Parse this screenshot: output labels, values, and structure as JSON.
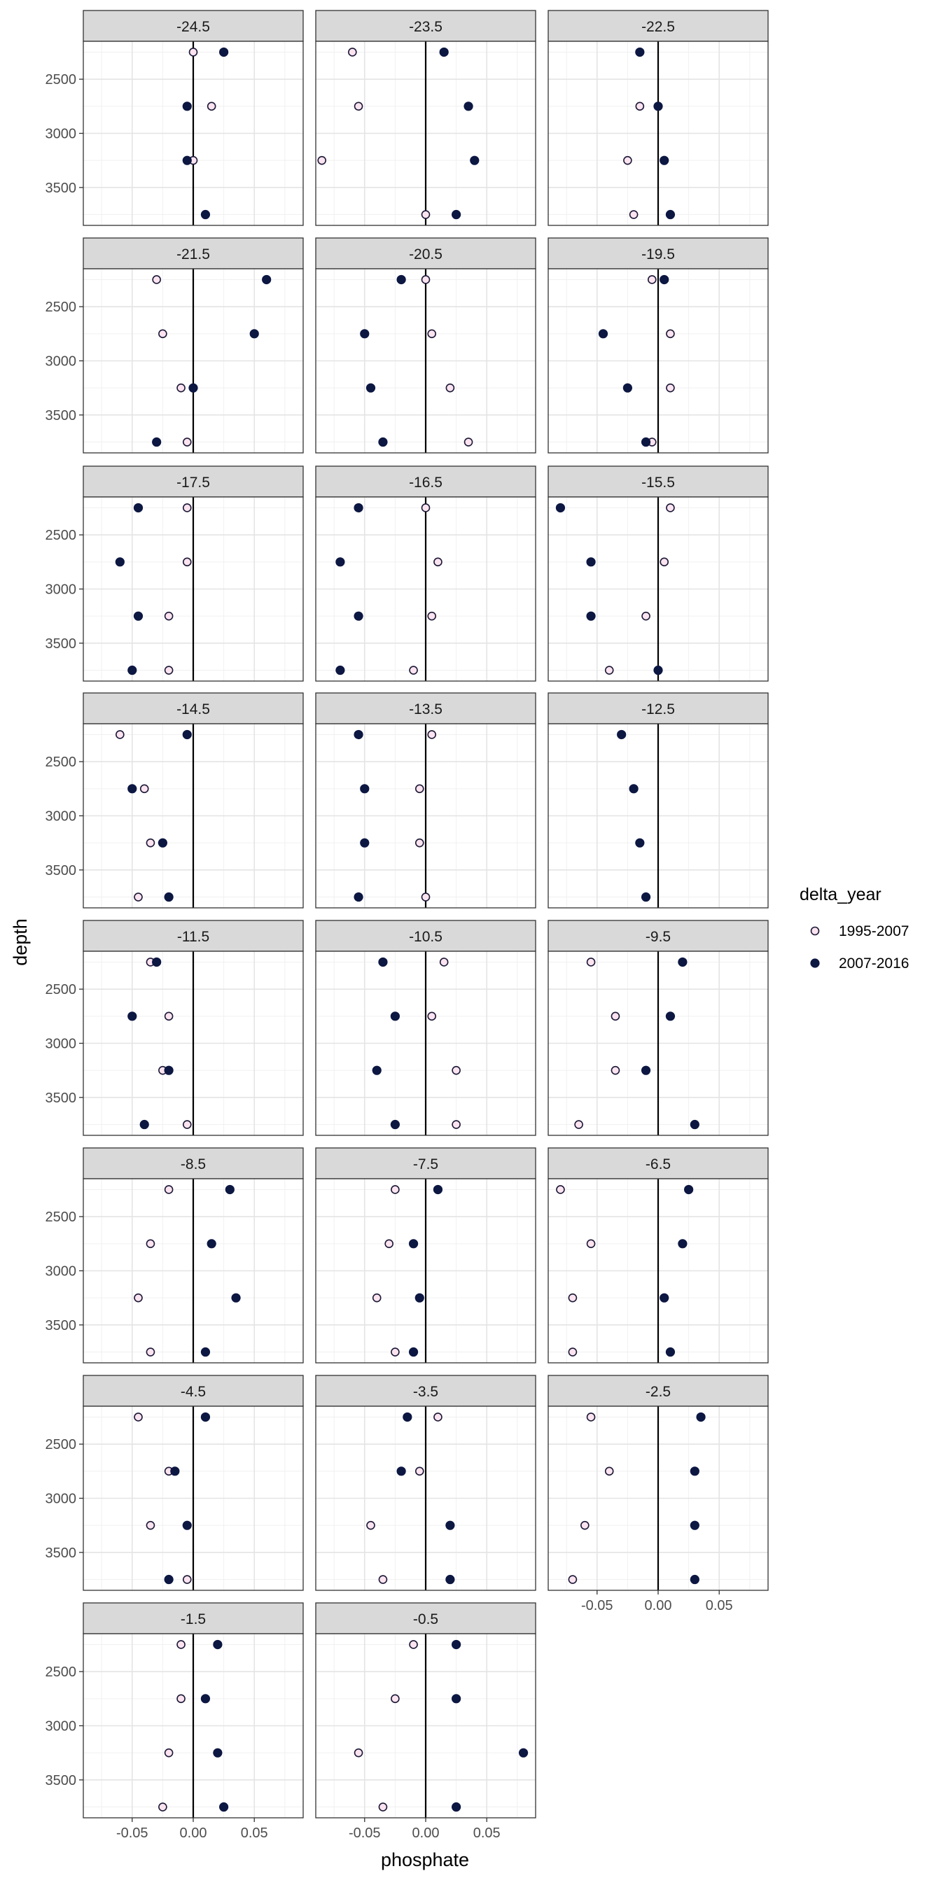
{
  "chart_data": {
    "type": "scatter",
    "xlabel": "phosphate",
    "ylabel": "depth",
    "xlim": [
      -0.09,
      0.09
    ],
    "ylim": [
      2150,
      3850
    ],
    "y_reversed": true,
    "x_ticks": [
      -0.05,
      0.0,
      0.05
    ],
    "x_tick_labels": [
      "-0.05",
      "0.00",
      "0.05"
    ],
    "y_ticks": [
      2500,
      3000,
      3500
    ],
    "y_tick_labels": [
      "2500",
      "3000",
      "3500"
    ],
    "reference_line_x": 0,
    "grid": true,
    "legend": {
      "title": "delta_year",
      "placement": "right",
      "entries": [
        {
          "label": "1995-2007",
          "fill": "#fbe3ef",
          "stroke": "#1b1836"
        },
        {
          "label": "2007-2016",
          "fill": "#0c1742",
          "stroke": "#0c1742"
        }
      ]
    },
    "depths": [
      2250,
      2750,
      3250,
      3750
    ],
    "facets": [
      {
        "title": "-24.5",
        "s1995": [
          0.0,
          0.015,
          0.0,
          null
        ],
        "s2007": [
          0.025,
          -0.005,
          -0.005,
          0.01
        ]
      },
      {
        "title": "-23.5",
        "s1995": [
          -0.06,
          -0.055,
          -0.085,
          0.0
        ],
        "s2007": [
          0.015,
          0.035,
          0.04,
          0.025
        ]
      },
      {
        "title": "-22.5",
        "s1995": [
          -0.015,
          -0.015,
          -0.025,
          -0.02
        ],
        "s2007": [
          -0.015,
          0.0,
          0.005,
          0.01
        ]
      },
      {
        "title": "-21.5",
        "s1995": [
          -0.03,
          -0.025,
          -0.01,
          -0.005
        ],
        "s2007": [
          0.06,
          0.05,
          0.0,
          -0.03
        ]
      },
      {
        "title": "-20.5",
        "s1995": [
          0.0,
          0.005,
          0.02,
          0.035
        ],
        "s2007": [
          -0.02,
          -0.05,
          -0.045,
          -0.035
        ]
      },
      {
        "title": "-19.5",
        "s1995": [
          -0.005,
          0.01,
          0.01,
          -0.005
        ],
        "s2007": [
          0.005,
          -0.045,
          -0.025,
          -0.01
        ]
      },
      {
        "title": "-17.5",
        "s1995": [
          -0.005,
          -0.005,
          -0.02,
          -0.02
        ],
        "s2007": [
          -0.045,
          -0.06,
          -0.045,
          -0.05
        ]
      },
      {
        "title": "-16.5",
        "s1995": [
          0.0,
          0.01,
          0.005,
          -0.01
        ],
        "s2007": [
          -0.055,
          -0.07,
          -0.055,
          -0.07
        ]
      },
      {
        "title": "-15.5",
        "s1995": [
          0.01,
          0.005,
          -0.01,
          -0.04
        ],
        "s2007": [
          -0.08,
          -0.055,
          -0.055,
          0.0
        ]
      },
      {
        "title": "-14.5",
        "s1995": [
          -0.06,
          -0.04,
          -0.035,
          -0.045
        ],
        "s2007": [
          -0.005,
          -0.05,
          -0.025,
          -0.02
        ]
      },
      {
        "title": "-13.5",
        "s1995": [
          0.005,
          -0.005,
          -0.005,
          0.0
        ],
        "s2007": [
          -0.055,
          -0.05,
          -0.05,
          -0.055
        ]
      },
      {
        "title": "-12.5",
        "s1995": [
          null,
          null,
          null,
          null
        ],
        "s2007": [
          -0.03,
          -0.02,
          -0.015,
          -0.01
        ]
      },
      {
        "title": "-11.5",
        "s1995": [
          -0.035,
          -0.02,
          -0.025,
          -0.005
        ],
        "s2007": [
          -0.03,
          -0.05,
          -0.02,
          -0.04
        ]
      },
      {
        "title": "-10.5",
        "s1995": [
          0.015,
          0.005,
          0.025,
          0.025
        ],
        "s2007": [
          -0.035,
          -0.025,
          -0.04,
          -0.025
        ]
      },
      {
        "title": "-9.5",
        "s1995": [
          -0.055,
          -0.035,
          -0.035,
          -0.065
        ],
        "s2007": [
          0.02,
          0.01,
          -0.01,
          0.03
        ]
      },
      {
        "title": "-8.5",
        "s1995": [
          -0.02,
          -0.035,
          -0.045,
          -0.035
        ],
        "s2007": [
          0.03,
          0.015,
          0.035,
          0.01
        ]
      },
      {
        "title": "-7.5",
        "s1995": [
          -0.025,
          -0.03,
          -0.04,
          -0.025
        ],
        "s2007": [
          0.01,
          -0.01,
          -0.005,
          -0.01
        ]
      },
      {
        "title": "-6.5",
        "s1995": [
          -0.08,
          -0.055,
          -0.07,
          -0.07
        ],
        "s2007": [
          0.025,
          0.02,
          0.005,
          0.01
        ]
      },
      {
        "title": "-4.5",
        "s1995": [
          -0.045,
          -0.02,
          -0.035,
          -0.005
        ],
        "s2007": [
          0.01,
          -0.015,
          -0.005,
          -0.02
        ]
      },
      {
        "title": "-3.5",
        "s1995": [
          0.01,
          -0.005,
          -0.045,
          -0.035
        ],
        "s2007": [
          -0.015,
          -0.02,
          0.02,
          0.02
        ]
      },
      {
        "title": "-2.5",
        "s1995": [
          -0.055,
          -0.04,
          -0.06,
          -0.07
        ],
        "s2007": [
          0.035,
          0.03,
          0.03,
          0.03
        ]
      },
      {
        "title": "-1.5",
        "s1995": [
          -0.01,
          -0.01,
          -0.02,
          -0.025
        ],
        "s2007": [
          0.02,
          0.01,
          0.02,
          0.025
        ]
      },
      {
        "title": "-0.5",
        "s1995": [
          -0.01,
          -0.025,
          -0.055,
          -0.035
        ],
        "s2007": [
          0.025,
          0.025,
          0.08,
          0.025
        ]
      }
    ]
  }
}
